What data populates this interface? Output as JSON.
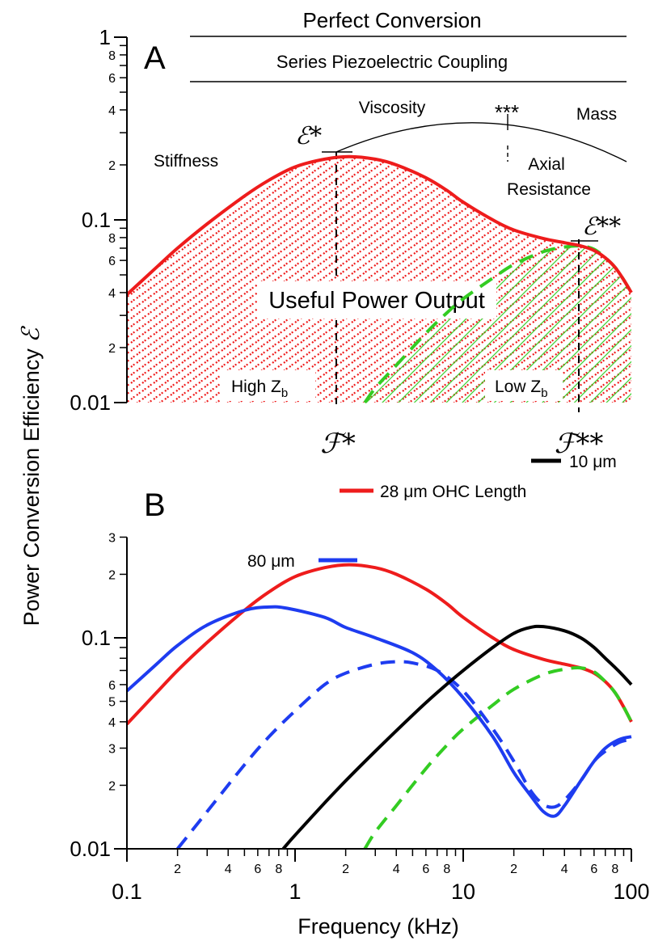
{
  "chart_data": [
    {
      "panel": "A",
      "type": "line",
      "x_scale": "log",
      "y_scale": "log",
      "xlim": [
        0.1,
        100
      ],
      "ylim": [
        0.01,
        1
      ],
      "ylabel": "Power Conversion Efficiency",
      "ylabel_symbol": "ℰ",
      "y_tick_labels": {
        "major": [
          "0.01",
          "0.1",
          "1"
        ],
        "minor": [
          "2",
          "4",
          "6",
          "8"
        ]
      },
      "reference_lines": [
        "Perfect Conversion",
        "Series Piezoelectric Coupling"
      ],
      "region_labels": {
        "stiffness": "Stiffness",
        "viscosity": "Viscosity",
        "mass": "Mass",
        "axial_resistance": "Axial Resistance",
        "triple_star": "***",
        "useful_power": "Useful Power Output",
        "high_zb": "High Z",
        "low_zb": "Low Z",
        "zb_subscript": "b"
      },
      "peak_labels": {
        "e_star": "ℰ*",
        "e_star_star": "ℰ**",
        "f_star": "ℱ*",
        "f_star_star": "ℱ**"
      },
      "peaks": {
        "f_star_khz": 2.1,
        "e_star": 0.22,
        "f_star_star_khz": 50,
        "e_star_star": 0.072
      },
      "series": [
        {
          "color": "#ee1c1c",
          "dash": "solid",
          "fill": "red-dash-hatch",
          "points": [
            [
              0.1,
              0.039
            ],
            [
              0.15,
              0.055
            ],
            [
              0.2,
              0.07
            ],
            [
              0.3,
              0.095
            ],
            [
              0.5,
              0.135
            ],
            [
              0.7,
              0.165
            ],
            [
              1,
              0.195
            ],
            [
              1.5,
              0.215
            ],
            [
              2.1,
              0.222
            ],
            [
              3,
              0.215
            ],
            [
              4,
              0.2
            ],
            [
              6,
              0.17
            ],
            [
              8,
              0.145
            ],
            [
              10,
              0.125
            ],
            [
              15,
              0.1
            ],
            [
              20,
              0.088
            ],
            [
              30,
              0.079
            ],
            [
              40,
              0.075
            ],
            [
              50,
              0.072
            ],
            [
              60,
              0.068
            ],
            [
              70,
              0.062
            ],
            [
              80,
              0.055
            ],
            [
              90,
              0.047
            ],
            [
              100,
              0.04
            ]
          ]
        },
        {
          "color": "#33cc22",
          "dash": "dashed",
          "fill": "green-diagonal-hatch",
          "points": [
            [
              2.6,
              0.01
            ],
            [
              3,
              0.012
            ],
            [
              4,
              0.016
            ],
            [
              6,
              0.024
            ],
            [
              8,
              0.031
            ],
            [
              10,
              0.037
            ],
            [
              15,
              0.048
            ],
            [
              20,
              0.057
            ],
            [
              30,
              0.067
            ],
            [
              40,
              0.071
            ],
            [
              50,
              0.072
            ],
            [
              60,
              0.069
            ],
            [
              70,
              0.062
            ],
            [
              80,
              0.055
            ],
            [
              90,
              0.047
            ],
            [
              100,
              0.04
            ]
          ]
        }
      ]
    },
    {
      "panel": "B",
      "type": "line",
      "x_scale": "log",
      "y_scale": "log",
      "xlim": [
        0.1,
        100
      ],
      "ylim": [
        0.01,
        0.3
      ],
      "xlabel": "Frequency (kHz)",
      "x_tick_labels": {
        "major": [
          "0.1",
          "1",
          "10",
          "100"
        ],
        "minor": [
          "2",
          "4",
          "6",
          "8"
        ]
      },
      "y_tick_labels": {
        "major": [
          "0.01",
          "0.1"
        ],
        "minor": [
          "2",
          "3",
          "4",
          "5",
          "6"
        ]
      },
      "legend_labels": {
        "red": "28 μm  OHC Length",
        "blue": "80 μm",
        "black": "10 μm"
      },
      "series": [
        {
          "color": "#ee1c1c",
          "dash": "solid",
          "points": [
            [
              0.1,
              0.039
            ],
            [
              0.15,
              0.055
            ],
            [
              0.2,
              0.07
            ],
            [
              0.3,
              0.095
            ],
            [
              0.5,
              0.135
            ],
            [
              0.7,
              0.165
            ],
            [
              1,
              0.195
            ],
            [
              1.5,
              0.215
            ],
            [
              2.1,
              0.222
            ],
            [
              3,
              0.215
            ],
            [
              4,
              0.2
            ],
            [
              6,
              0.17
            ],
            [
              8,
              0.145
            ],
            [
              10,
              0.125
            ],
            [
              15,
              0.1
            ],
            [
              20,
              0.088
            ],
            [
              30,
              0.079
            ],
            [
              40,
              0.075
            ],
            [
              50,
              0.072
            ],
            [
              60,
              0.068
            ],
            [
              70,
              0.062
            ],
            [
              80,
              0.055
            ],
            [
              90,
              0.047
            ],
            [
              100,
              0.04
            ]
          ]
        },
        {
          "color": "#33cc22",
          "dash": "dashed",
          "points": [
            [
              2.6,
              0.01
            ],
            [
              3,
              0.012
            ],
            [
              4,
              0.016
            ],
            [
              6,
              0.024
            ],
            [
              8,
              0.031
            ],
            [
              10,
              0.037
            ],
            [
              15,
              0.048
            ],
            [
              20,
              0.057
            ],
            [
              30,
              0.067
            ],
            [
              40,
              0.071
            ],
            [
              50,
              0.072
            ],
            [
              60,
              0.069
            ],
            [
              70,
              0.062
            ],
            [
              80,
              0.055
            ],
            [
              90,
              0.047
            ],
            [
              100,
              0.04
            ]
          ]
        },
        {
          "color": "#1e3cf0",
          "dash": "solid",
          "points": [
            [
              0.1,
              0.056
            ],
            [
              0.15,
              0.075
            ],
            [
              0.2,
              0.092
            ],
            [
              0.3,
              0.115
            ],
            [
              0.5,
              0.135
            ],
            [
              0.7,
              0.14
            ],
            [
              0.9,
              0.138
            ],
            [
              1.5,
              0.125
            ],
            [
              2,
              0.112
            ],
            [
              3,
              0.1
            ],
            [
              5,
              0.085
            ],
            [
              7,
              0.07
            ],
            [
              10,
              0.052
            ],
            [
              15,
              0.034
            ],
            [
              20,
              0.023
            ],
            [
              25,
              0.018
            ],
            [
              30,
              0.015
            ],
            [
              35,
              0.0143
            ],
            [
              40,
              0.016
            ],
            [
              50,
              0.021
            ],
            [
              60,
              0.026
            ],
            [
              70,
              0.03
            ],
            [
              85,
              0.033
            ],
            [
              100,
              0.034
            ]
          ]
        },
        {
          "color": "#1e3cf0",
          "dash": "dashed",
          "points": [
            [
              0.2,
              0.01
            ],
            [
              0.3,
              0.015
            ],
            [
              0.5,
              0.025
            ],
            [
              0.7,
              0.034
            ],
            [
              1,
              0.045
            ],
            [
              1.5,
              0.06
            ],
            [
              2,
              0.068
            ],
            [
              3,
              0.075
            ],
            [
              4,
              0.077
            ],
            [
              5,
              0.076
            ],
            [
              7,
              0.07
            ],
            [
              10,
              0.056
            ],
            [
              15,
              0.037
            ],
            [
              20,
              0.026
            ],
            [
              25,
              0.019
            ],
            [
              30,
              0.0162
            ],
            [
              35,
              0.0158
            ],
            [
              40,
              0.017
            ],
            [
              50,
              0.021
            ],
            [
              60,
              0.026
            ],
            [
              70,
              0.029
            ],
            [
              85,
              0.032
            ],
            [
              100,
              0.033
            ]
          ]
        },
        {
          "color": "#000000",
          "dash": "solid",
          "points": [
            [
              0.85,
              0.01
            ],
            [
              1,
              0.0116
            ],
            [
              1.5,
              0.0165
            ],
            [
              2,
              0.021
            ],
            [
              3,
              0.029
            ],
            [
              5,
              0.043
            ],
            [
              7,
              0.055
            ],
            [
              10,
              0.07
            ],
            [
              15,
              0.09
            ],
            [
              20,
              0.105
            ],
            [
              25,
              0.112
            ],
            [
              30,
              0.113
            ],
            [
              40,
              0.108
            ],
            [
              50,
              0.1
            ],
            [
              60,
              0.09
            ],
            [
              70,
              0.08
            ],
            [
              85,
              0.069
            ],
            [
              100,
              0.06
            ]
          ]
        }
      ]
    }
  ]
}
